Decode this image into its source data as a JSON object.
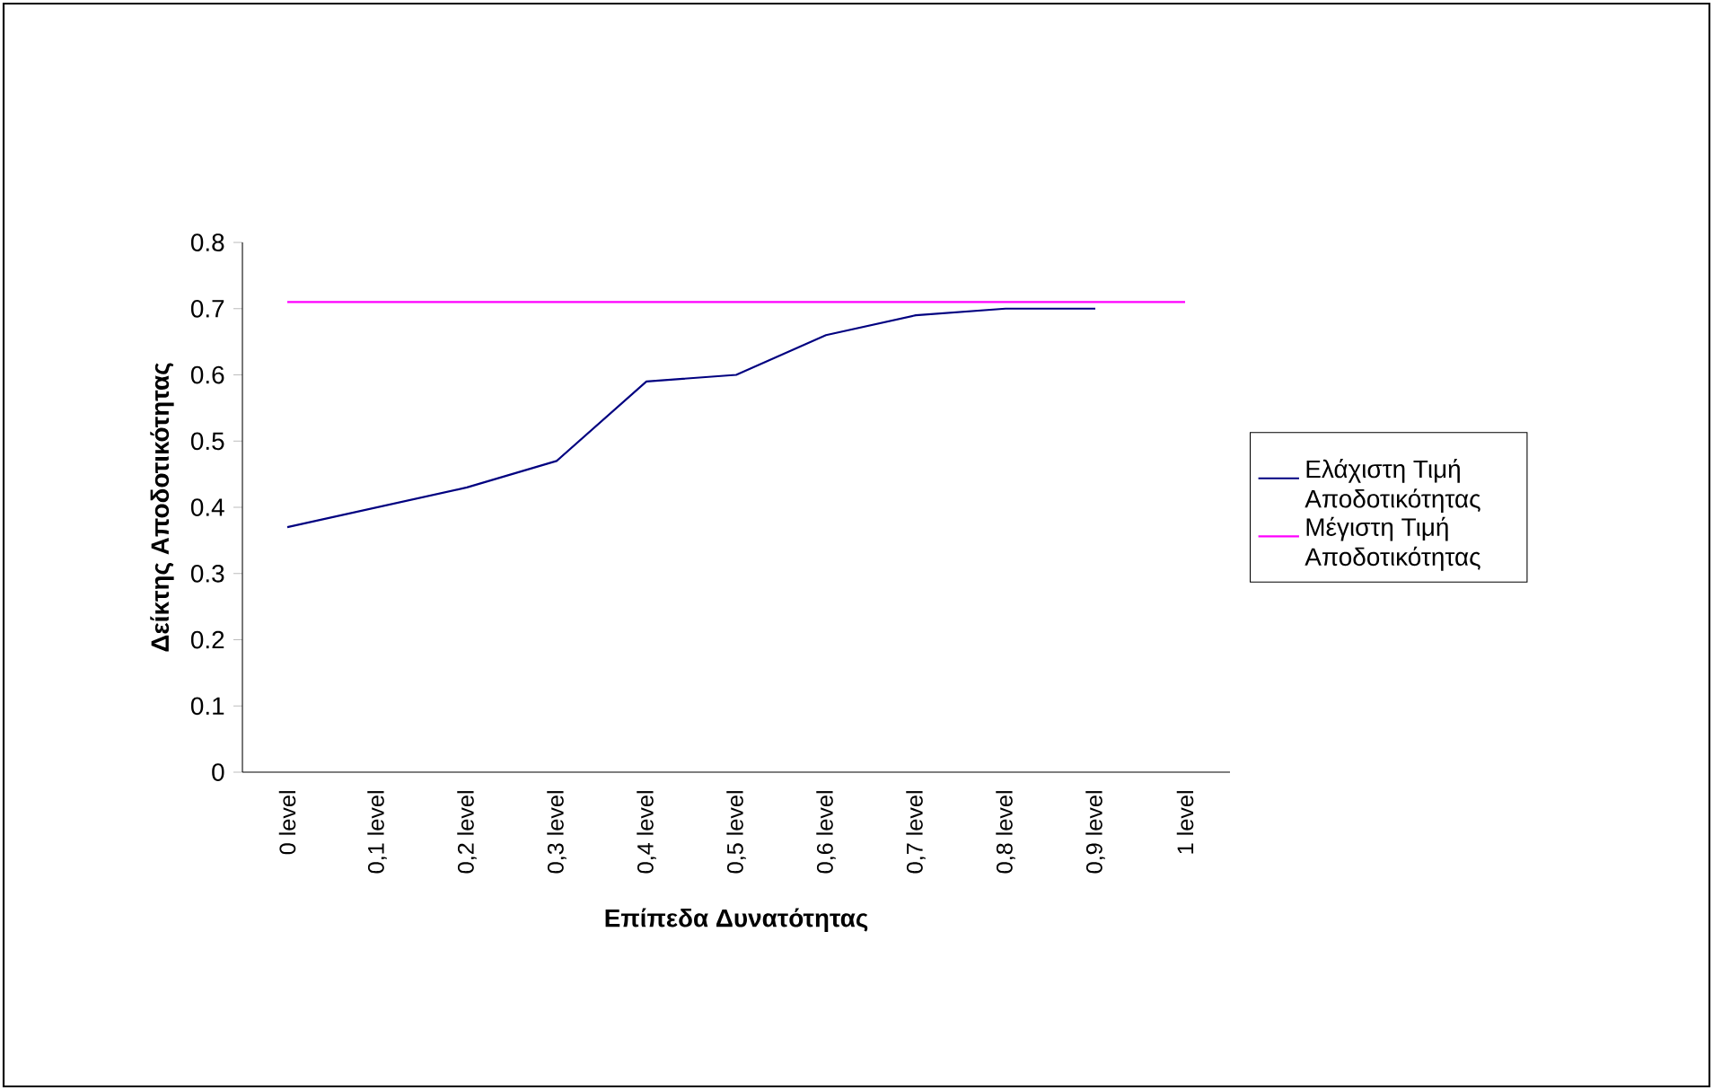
{
  "chart_data": {
    "type": "line",
    "xlabel": "Επίπεδα Δυνατότητας",
    "ylabel": "Δείκτης Αποδοτικότητας",
    "categories": [
      "0 level",
      "0,1 level",
      "0,2 level",
      "0,3 level",
      "0,4 level",
      "0,5 level",
      "0,6 level",
      "0,7 level",
      "0,8 level",
      "0,9 level",
      "1 level"
    ],
    "series": [
      {
        "name": "Ελάχιστη Τιμή Αποδοτικότητας",
        "color": "#000080",
        "values": [
          0.37,
          0.4,
          0.43,
          0.47,
          0.59,
          0.6,
          0.66,
          0.69,
          0.7,
          0.7,
          null
        ]
      },
      {
        "name": "Μέγιστη Τιμή Αποδοτικότητας",
        "color": "#ff00ff",
        "values": [
          0.71,
          0.71,
          0.71,
          0.71,
          0.71,
          0.71,
          0.71,
          0.71,
          0.71,
          0.71,
          0.71
        ]
      }
    ],
    "ylim": [
      0,
      0.8
    ],
    "yticks": [
      0,
      0.1,
      0.2,
      0.3,
      0.4,
      0.5,
      0.6,
      0.7,
      0.8
    ],
    "grid": false,
    "legend": "right",
    "marker": "none",
    "line_style": "solid"
  }
}
